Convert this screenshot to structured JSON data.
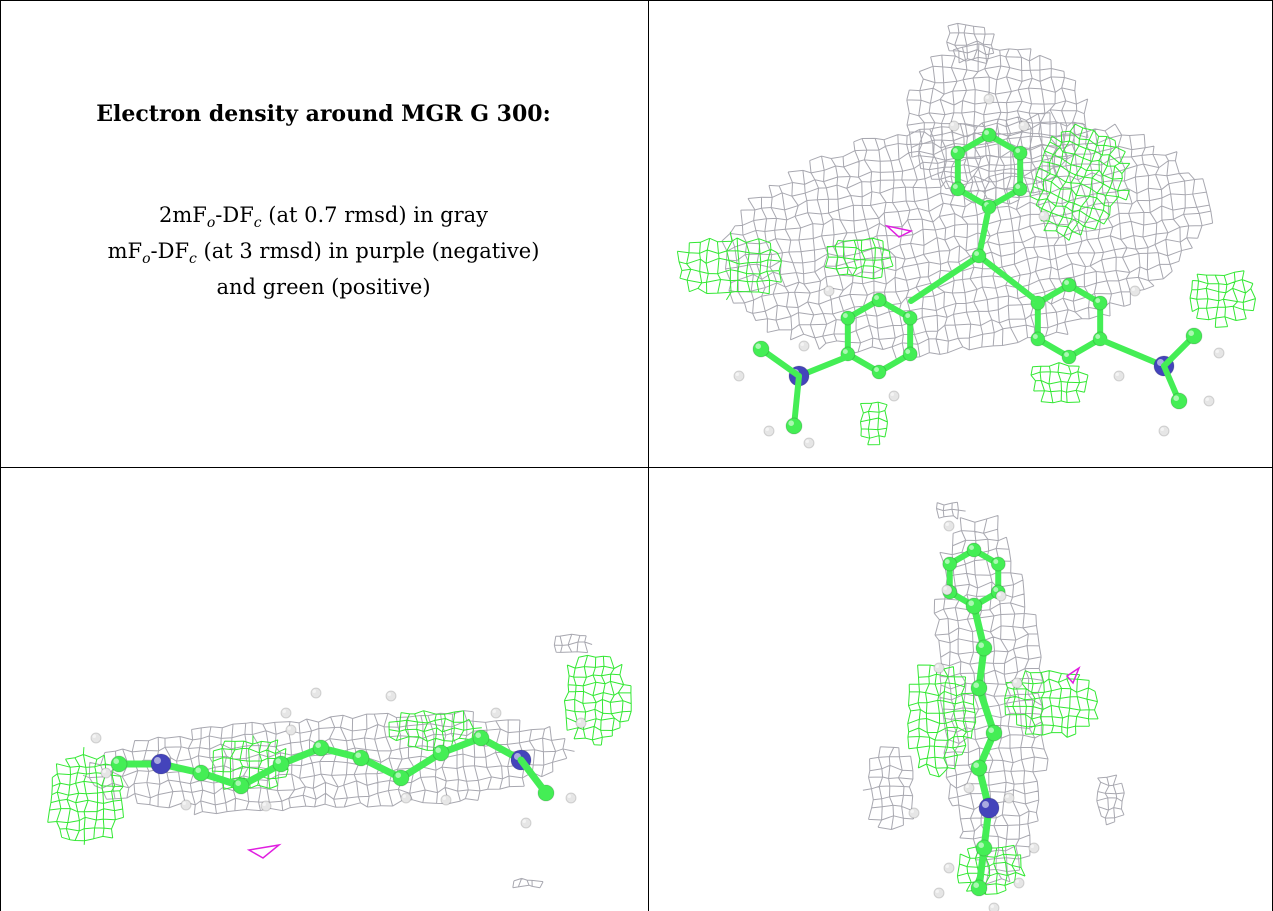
{
  "caption": {
    "title": "Electron density around MGR G 300:",
    "line1": {
      "prefix": "2mF",
      "sub1": "o",
      "mid": "-DF",
      "sub2": "c",
      "suffix": " (at 0.7 rmsd) in gray"
    },
    "line2": {
      "prefix": "mF",
      "sub1": "o",
      "mid": "-DF",
      "sub2": "c",
      "suffix": " (at 3 rmsd) in purple (negative)"
    },
    "line3": "and green (positive)"
  },
  "colors": {
    "mesh_gray": "#a8a8b0",
    "mesh_green": "#33e833",
    "mesh_purple": "#e01ee0",
    "carbon": "#44ee55",
    "nitrogen": "#4444bb",
    "hydrogen": "#e6e6e6"
  },
  "panels": [
    {
      "name": "top-right-view"
    },
    {
      "name": "bottom-left-view"
    },
    {
      "name": "bottom-right-view"
    }
  ]
}
